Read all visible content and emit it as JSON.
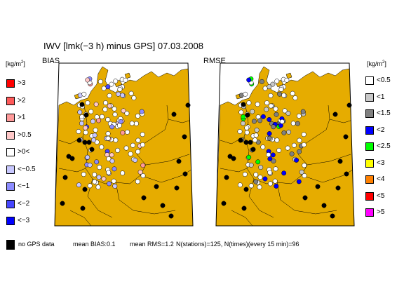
{
  "title": "IWV [lmk(−3 h) minus GPS] 07.03.2008",
  "panels": {
    "bias": {
      "label": "BIAS"
    },
    "rmse": {
      "label": "RMSE"
    }
  },
  "units": {
    "base": "[kg/m",
    "exp": "2",
    "close": "]"
  },
  "legend_bias": [
    {
      "label": ">3",
      "color": "#ff0000"
    },
    {
      "label": ">2",
      "color": "#ff5a5a"
    },
    {
      "label": ">1",
      "color": "#ff9a9a"
    },
    {
      "label": ">0.5",
      "color": "#ffc8c8"
    },
    {
      "label": ">0<",
      "color": "#ffffff"
    },
    {
      "label": "<−0.5",
      "color": "#c8c8ff"
    },
    {
      "label": "<−1",
      "color": "#8c8cff"
    },
    {
      "label": "<−2",
      "color": "#4646ff"
    },
    {
      "label": "<−3",
      "color": "#0000ff"
    }
  ],
  "legend_rmse": [
    {
      "label": "<0.5",
      "color": "#ffffff"
    },
    {
      "label": "<1",
      "color": "#c8c8c8"
    },
    {
      "label": "<1.5",
      "color": "#808080"
    },
    {
      "label": "<2",
      "color": "#0000ff"
    },
    {
      "label": "<2.5",
      "color": "#00ff00"
    },
    {
      "label": "<3",
      "color": "#ffff00"
    },
    {
      "label": "<4",
      "color": "#ff8000"
    },
    {
      "label": "<5",
      "color": "#ff0000"
    },
    {
      "label": ">5",
      "color": "#ff00ff"
    }
  ],
  "colors": {
    "land": "#e6ac00",
    "sea": "#ffffff",
    "no_data": "#000000"
  },
  "footer": {
    "no_gps": "no GPS data",
    "mean_bias": "mean BIAS:0.1",
    "mean_rms": "mean RMS=1.2",
    "stations": "N(stations)=125, N(times)(every 15 min)=96"
  }
}
